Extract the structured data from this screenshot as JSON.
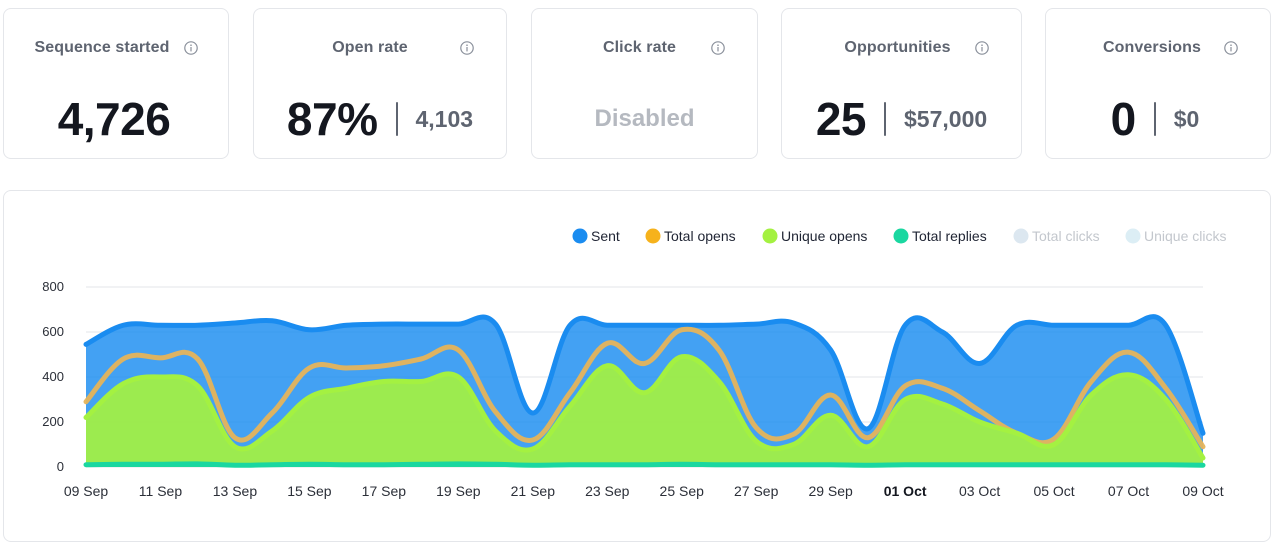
{
  "metrics": [
    {
      "title": "Sequence started",
      "value": "4,726"
    },
    {
      "title": "Open rate",
      "value": "87%",
      "sub": "4,103"
    },
    {
      "title": "Click rate",
      "disabled_label": "Disabled"
    },
    {
      "title": "Opportunities",
      "value": "25",
      "sub": "$57,000"
    },
    {
      "title": "Conversions",
      "value": "0",
      "sub": "$0"
    }
  ],
  "chart_data": {
    "type": "area",
    "title": "",
    "xlabel": "",
    "ylabel": "",
    "ylim": [
      0,
      800
    ],
    "yticks": [
      0,
      200,
      400,
      600,
      800
    ],
    "grid": true,
    "legend_position": "top-right",
    "x_labels": [
      "09 Sep",
      "11 Sep",
      "13 Sep",
      "15 Sep",
      "17 Sep",
      "19 Sep",
      "21 Sep",
      "23 Sep",
      "25 Sep",
      "27 Sep",
      "29 Sep",
      "01 Oct",
      "03 Oct",
      "05 Oct",
      "07 Oct",
      "09 Oct"
    ],
    "highlight_label": "01 Oct",
    "days": [
      "09 Sep",
      "10 Sep",
      "11 Sep",
      "12 Sep",
      "13 Sep",
      "14 Sep",
      "15 Sep",
      "16 Sep",
      "17 Sep",
      "18 Sep",
      "19 Sep",
      "20 Sep",
      "21 Sep",
      "22 Sep",
      "23 Sep",
      "24 Sep",
      "25 Sep",
      "26 Sep",
      "27 Sep",
      "28 Sep",
      "29 Sep",
      "30 Sep",
      "01 Oct",
      "02 Oct",
      "03 Oct",
      "04 Oct",
      "05 Oct",
      "06 Oct",
      "07 Oct",
      "08 Oct",
      "09 Oct"
    ],
    "series": [
      {
        "name": "Sent",
        "color": "#1a8cf0",
        "enabled": true,
        "values": [
          545,
          630,
          630,
          630,
          640,
          650,
          610,
          630,
          635,
          635,
          635,
          635,
          240,
          630,
          630,
          630,
          630,
          630,
          635,
          640,
          520,
          170,
          630,
          600,
          460,
          630,
          630,
          630,
          630,
          630,
          150
        ]
      },
      {
        "name": "Total opens",
        "color": "#f6b21c",
        "enabled": true,
        "values": [
          290,
          480,
          485,
          480,
          130,
          240,
          440,
          440,
          450,
          480,
          520,
          245,
          120,
          330,
          550,
          460,
          610,
          520,
          175,
          145,
          320,
          130,
          360,
          350,
          250,
          150,
          125,
          380,
          510,
          350,
          90
        ]
      },
      {
        "name": "Unique opens",
        "color": "#a4f141",
        "enabled": true,
        "values": [
          220,
          370,
          400,
          360,
          90,
          160,
          310,
          350,
          380,
          380,
          400,
          160,
          80,
          270,
          450,
          330,
          490,
          380,
          115,
          100,
          230,
          90,
          300,
          280,
          200,
          150,
          100,
          320,
          410,
          300,
          40
        ]
      },
      {
        "name": "Total replies",
        "color": "#1ad7a0",
        "enabled": true,
        "values": [
          10,
          12,
          12,
          14,
          8,
          10,
          12,
          10,
          10,
          12,
          14,
          12,
          8,
          10,
          10,
          10,
          12,
          10,
          10,
          10,
          10,
          8,
          10,
          10,
          10,
          10,
          10,
          10,
          10,
          10,
          8
        ]
      },
      {
        "name": "Total clicks",
        "color": "#dce7f0",
        "enabled": false,
        "values": []
      },
      {
        "name": "Unique clicks",
        "color": "#dceef5",
        "enabled": false,
        "values": []
      }
    ]
  }
}
